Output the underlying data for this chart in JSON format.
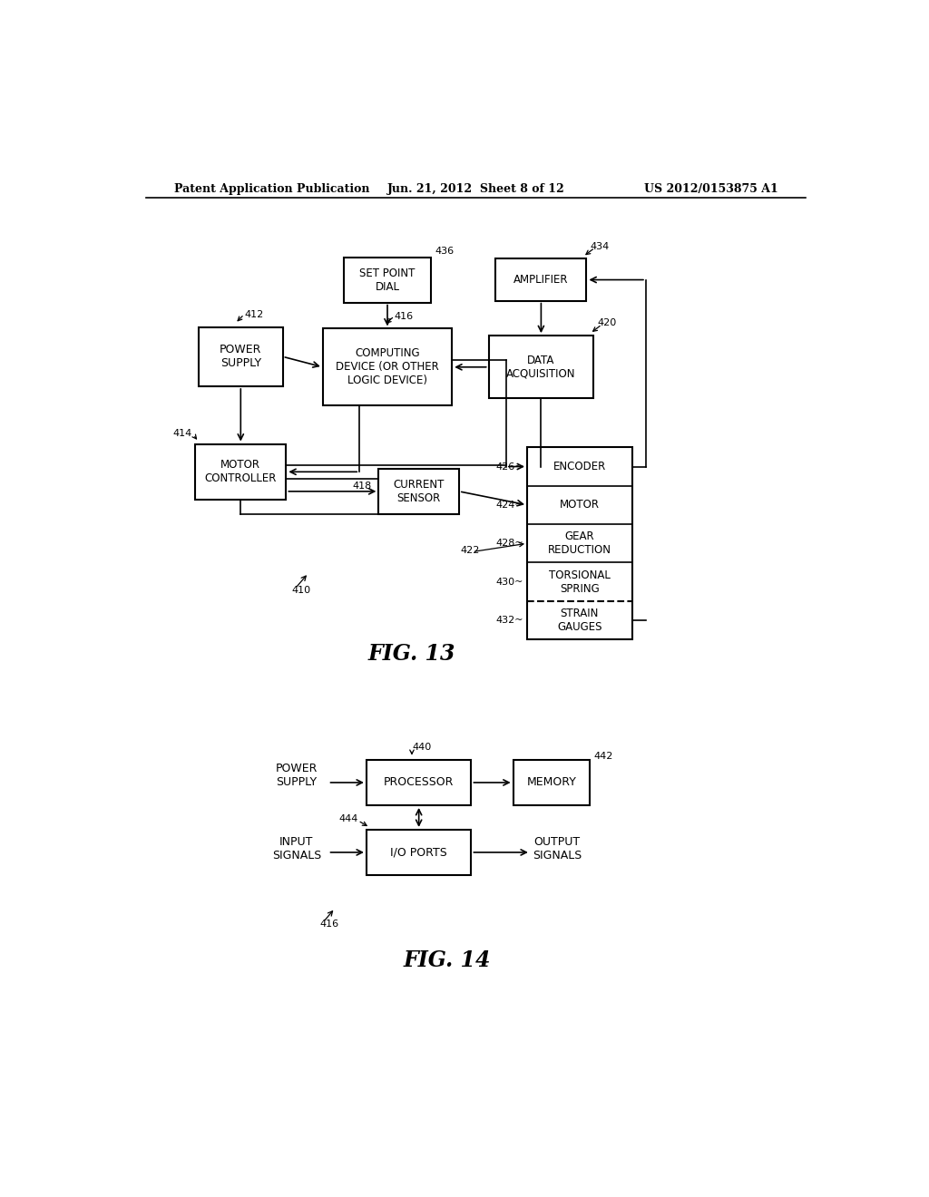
{
  "header_left": "Patent Application Publication",
  "header_mid": "Jun. 21, 2012  Sheet 8 of 12",
  "header_right": "US 2012/0153875 A1",
  "bg_color": "#ffffff",
  "fig13_label": "FIG. 13",
  "fig14_label": "FIG. 14"
}
